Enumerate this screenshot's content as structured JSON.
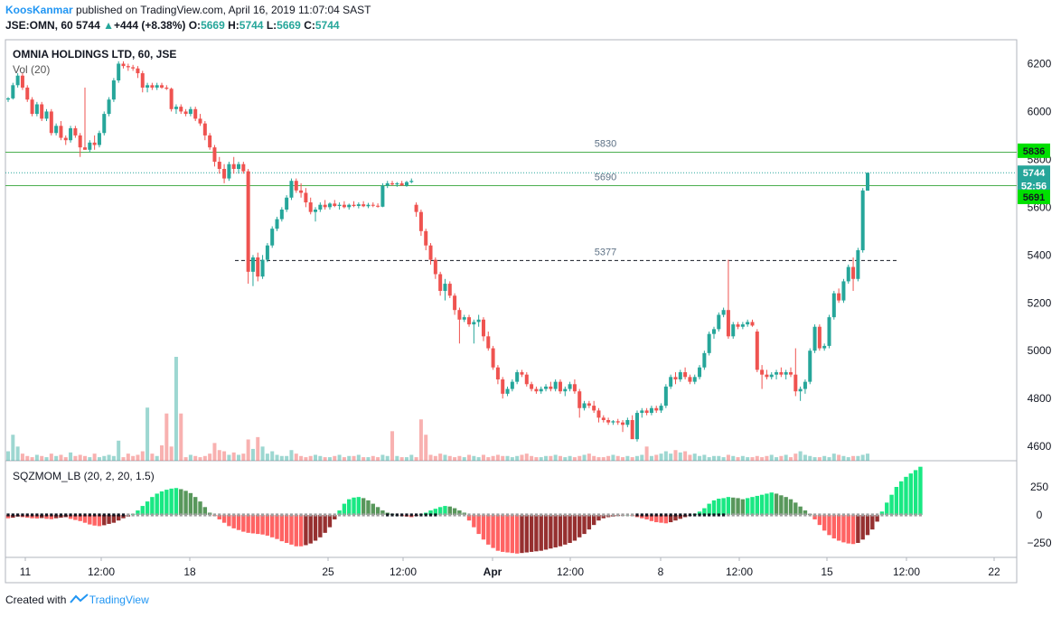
{
  "header": {
    "author": "KoosKanmar",
    "published": "published on TradingView.com, April 16, 2019 11:07:04 SAST",
    "symbol": "JSE:OMN, 60",
    "last": "5744",
    "arrow": "▲",
    "change": "+444 (+8.38%)",
    "o_label": "O:",
    "o_value": "5669",
    "h_label": "H:",
    "h_value": "5744",
    "l_label": "L:",
    "l_value": "5669",
    "c_label": "C:",
    "c_value": "5744"
  },
  "legend": {
    "symbol_title": "OMNIA HOLDINGS LTD, 60, JSE",
    "volume_label": "Vol (20)",
    "indicator_label": "SQZMOM_LB (20, 2, 20, 1.5)"
  },
  "footer": {
    "created_with": "Created with",
    "brand": "TradingView"
  },
  "colors": {
    "up": "#26a69a",
    "down": "#ef5350",
    "line_green": "#4caf50",
    "price_tag": "#26a69a",
    "green_tag": "#00e000",
    "sq_bright_green": "#00e676",
    "sq_dark_green": "#2e7d32",
    "sq_red": "#ff5252",
    "sq_maroon": "#8b1a1a"
  },
  "chart_data": {
    "type": "candlestick",
    "price_axis": {
      "range": [
        4540,
        6300
      ],
      "ticks": [
        "6200",
        "6000",
        "5800",
        "5600",
        "5400",
        "5200",
        "5000",
        "4800",
        "4600"
      ]
    },
    "time_axis_labels": [
      "11",
      "12:00",
      "18",
      "25",
      "12:00",
      "Apr",
      "12:00",
      "8",
      "12:00",
      "15",
      "12:00",
      "22"
    ],
    "horizontal_lines": [
      {
        "label": "5830",
        "value": 5830,
        "style": "solid"
      },
      {
        "label": "5690",
        "value": 5690,
        "style": "solid"
      },
      {
        "label": "5377",
        "value": 5377,
        "style": "dashed"
      }
    ],
    "price_tags": [
      {
        "label": "5836",
        "value": 5836,
        "kind": "green"
      },
      {
        "label": "5744",
        "value": 5744,
        "kind": "price"
      },
      {
        "label": "52:56",
        "value": 5690,
        "kind": "timer"
      },
      {
        "label": "5691",
        "value": 5643,
        "kind": "green"
      }
    ],
    "candles": [
      [
        6050,
        6060,
        6040,
        6055
      ],
      [
        6055,
        6120,
        6050,
        6110
      ],
      [
        6110,
        6160,
        6100,
        6150
      ],
      [
        6150,
        6160,
        6090,
        6100
      ],
      [
        6100,
        6110,
        6040,
        6050
      ],
      [
        6050,
        6060,
        5980,
        5990
      ],
      [
        5990,
        6040,
        5980,
        6030
      ],
      [
        6030,
        6040,
        5960,
        5970
      ],
      [
        5970,
        6010,
        5960,
        6000
      ],
      [
        6000,
        6010,
        5900,
        5910
      ],
      [
        5910,
        5950,
        5900,
        5940
      ],
      [
        5940,
        5960,
        5880,
        5890
      ],
      [
        5890,
        5900,
        5860,
        5880
      ],
      [
        5880,
        5940,
        5870,
        5930
      ],
      [
        5930,
        5940,
        5890,
        5900
      ],
      [
        5900,
        5910,
        5810,
        5850
      ],
      [
        5850,
        6100,
        5840,
        5840
      ],
      [
        5840,
        5880,
        5830,
        5870
      ],
      [
        5870,
        5900,
        5840,
        5860
      ],
      [
        5860,
        5920,
        5850,
        5910
      ],
      [
        5910,
        6000,
        5900,
        5990
      ],
      [
        5990,
        6060,
        5980,
        6050
      ],
      [
        6050,
        6140,
        6040,
        6130
      ],
      [
        6130,
        6210,
        6120,
        6200
      ],
      [
        6200,
        6210,
        6180,
        6190
      ],
      [
        6190,
        6200,
        6170,
        6185
      ],
      [
        6185,
        6195,
        6170,
        6180
      ],
      [
        6180,
        6190,
        6140,
        6160
      ],
      [
        6160,
        6170,
        6080,
        6100
      ],
      [
        6100,
        6120,
        6080,
        6110
      ],
      [
        6110,
        6120,
        6090,
        6100
      ],
      [
        6100,
        6120,
        6090,
        6110
      ],
      [
        6110,
        6120,
        6095,
        6100
      ],
      [
        6100,
        6110,
        6090,
        6095
      ],
      [
        6095,
        6100,
        6000,
        6010
      ],
      [
        6010,
        6030,
        5990,
        6020
      ],
      [
        6020,
        6030,
        5990,
        6000
      ],
      [
        6000,
        6010,
        5980,
        5990
      ],
      [
        5990,
        6020,
        5980,
        6010
      ],
      [
        6010,
        6020,
        5960,
        5970
      ],
      [
        5970,
        5990,
        5940,
        5950
      ],
      [
        5950,
        5960,
        5880,
        5900
      ],
      [
        5900,
        5910,
        5840,
        5850
      ],
      [
        5850,
        5860,
        5770,
        5790
      ],
      [
        5790,
        5810,
        5740,
        5760
      ],
      [
        5760,
        5780,
        5700,
        5720
      ],
      [
        5720,
        5790,
        5710,
        5780
      ],
      [
        5780,
        5810,
        5740,
        5760
      ],
      [
        5760,
        5790,
        5740,
        5780
      ],
      [
        5780,
        5790,
        5740,
        5750
      ],
      [
        5750,
        5760,
        5280,
        5330
      ],
      [
        5330,
        5400,
        5270,
        5390
      ],
      [
        5390,
        5410,
        5290,
        5310
      ],
      [
        5310,
        5400,
        5300,
        5380
      ],
      [
        5380,
        5450,
        5370,
        5440
      ],
      [
        5440,
        5520,
        5430,
        5510
      ],
      [
        5510,
        5560,
        5500,
        5550
      ],
      [
        5550,
        5600,
        5540,
        5590
      ],
      [
        5590,
        5650,
        5580,
        5640
      ],
      [
        5640,
        5720,
        5630,
        5710
      ],
      [
        5710,
        5720,
        5660,
        5670
      ],
      [
        5670,
        5700,
        5640,
        5660
      ],
      [
        5660,
        5680,
        5600,
        5620
      ],
      [
        5620,
        5640,
        5570,
        5580
      ],
      [
        5580,
        5600,
        5540,
        5590
      ],
      [
        5590,
        5620,
        5580,
        5610
      ],
      [
        5610,
        5630,
        5590,
        5600
      ],
      [
        5600,
        5620,
        5590,
        5615
      ],
      [
        5615,
        5630,
        5600,
        5605
      ],
      [
        5605,
        5620,
        5590,
        5610
      ],
      [
        5610,
        5625,
        5595,
        5600
      ],
      [
        5600,
        5615,
        5590,
        5610
      ],
      [
        5610,
        5625,
        5600,
        5605
      ],
      [
        5605,
        5620,
        5595,
        5612
      ],
      [
        5612,
        5625,
        5600,
        5604
      ],
      [
        5604,
        5618,
        5596,
        5610
      ],
      [
        5610,
        5620,
        5600,
        5606
      ],
      [
        5606,
        5616,
        5598,
        5602
      ],
      [
        5602,
        5700,
        5600,
        5690
      ],
      [
        5690,
        5710,
        5680,
        5700
      ],
      [
        5700,
        5710,
        5690,
        5695
      ],
      [
        5695,
        5705,
        5685,
        5700
      ],
      [
        5700,
        5710,
        5690,
        5690
      ],
      [
        5690,
        5710,
        5685,
        5705
      ],
      [
        5705,
        5720,
        5700,
        5710
      ],
      [
        5610,
        5620,
        5560,
        5580
      ],
      [
        5580,
        5590,
        5480,
        5500
      ],
      [
        5500,
        5510,
        5420,
        5440
      ],
      [
        5440,
        5450,
        5360,
        5380
      ],
      [
        5380,
        5390,
        5300,
        5320
      ],
      [
        5320,
        5330,
        5230,
        5250
      ],
      [
        5250,
        5300,
        5210,
        5280
      ],
      [
        5280,
        5290,
        5220,
        5230
      ],
      [
        5230,
        5240,
        5150,
        5170
      ],
      [
        5170,
        5180,
        5030,
        5130
      ],
      [
        5130,
        5150,
        5120,
        5140
      ],
      [
        5140,
        5150,
        5100,
        5110
      ],
      [
        5110,
        5130,
        5030,
        5120
      ],
      [
        5120,
        5150,
        5100,
        5130
      ],
      [
        5130,
        5140,
        5040,
        5060
      ],
      [
        5060,
        5080,
        5000,
        5010
      ],
      [
        5010,
        5020,
        4920,
        4930
      ],
      [
        4930,
        4940,
        4860,
        4880
      ],
      [
        4880,
        4890,
        4800,
        4820
      ],
      [
        4820,
        4850,
        4810,
        4840
      ],
      [
        4840,
        4880,
        4830,
        4870
      ],
      [
        4870,
        4920,
        4860,
        4910
      ],
      [
        4910,
        4920,
        4890,
        4900
      ],
      [
        4900,
        4910,
        4850,
        4860
      ],
      [
        4860,
        4870,
        4830,
        4840
      ],
      [
        4840,
        4850,
        4820,
        4830
      ],
      [
        4830,
        4850,
        4820,
        4840
      ],
      [
        4840,
        4860,
        4830,
        4850
      ],
      [
        4850,
        4870,
        4830,
        4840
      ],
      [
        4840,
        4880,
        4830,
        4870
      ],
      [
        4870,
        4880,
        4820,
        4830
      ],
      [
        4830,
        4850,
        4810,
        4840
      ],
      [
        4840,
        4870,
        4830,
        4860
      ],
      [
        4860,
        4880,
        4820,
        4830
      ],
      [
        4830,
        4840,
        4720,
        4760
      ],
      [
        4760,
        4790,
        4750,
        4780
      ],
      [
        4780,
        4790,
        4760,
        4770
      ],
      [
        4770,
        4790,
        4740,
        4750
      ],
      [
        4750,
        4760,
        4700,
        4720
      ],
      [
        4720,
        4730,
        4700,
        4710
      ],
      [
        4710,
        4720,
        4690,
        4700
      ],
      [
        4700,
        4710,
        4690,
        4705
      ],
      [
        4705,
        4715,
        4690,
        4700
      ],
      [
        4700,
        4710,
        4660,
        4690
      ],
      [
        4690,
        4720,
        4680,
        4710
      ],
      [
        4710,
        4730,
        4640,
        4630
      ],
      [
        4630,
        4750,
        4620,
        4740
      ],
      [
        4740,
        4760,
        4720,
        4750
      ],
      [
        4750,
        4760,
        4730,
        4740
      ],
      [
        4740,
        4770,
        4730,
        4760
      ],
      [
        4760,
        4770,
        4740,
        4750
      ],
      [
        4750,
        4780,
        4740,
        4770
      ],
      [
        4770,
        4860,
        4760,
        4850
      ],
      [
        4850,
        4900,
        4840,
        4890
      ],
      [
        4890,
        4910,
        4860,
        4880
      ],
      [
        4880,
        4920,
        4870,
        4910
      ],
      [
        4910,
        4930,
        4880,
        4890
      ],
      [
        4890,
        4900,
        4860,
        4870
      ],
      [
        4870,
        4900,
        4860,
        4890
      ],
      [
        4890,
        4940,
        4880,
        4930
      ],
      [
        4930,
        5000,
        4920,
        4990
      ],
      [
        4990,
        5080,
        4980,
        5070
      ],
      [
        5070,
        5100,
        5050,
        5090
      ],
      [
        5090,
        5160,
        5080,
        5150
      ],
      [
        5150,
        5180,
        5140,
        5170
      ],
      [
        5170,
        5380,
        5050,
        5060
      ],
      [
        5060,
        5120,
        5050,
        5110
      ],
      [
        5110,
        5120,
        5090,
        5100
      ],
      [
        5100,
        5120,
        5090,
        5110
      ],
      [
        5110,
        5130,
        5100,
        5120
      ],
      [
        5120,
        5130,
        5100,
        5105
      ],
      [
        5080,
        5090,
        4910,
        4920
      ],
      [
        4920,
        4940,
        4840,
        4900
      ],
      [
        4900,
        4920,
        4880,
        4890
      ],
      [
        4890,
        4910,
        4880,
        4900
      ],
      [
        4900,
        4920,
        4880,
        4910
      ],
      [
        4910,
        4930,
        4890,
        4900
      ],
      [
        4900,
        4920,
        4880,
        4910
      ],
      [
        4910,
        4930,
        4890,
        4900
      ],
      [
        4900,
        5010,
        4810,
        4830
      ],
      [
        4830,
        4850,
        4790,
        4840
      ],
      [
        4840,
        4880,
        4820,
        4870
      ],
      [
        4870,
        5010,
        4860,
        5000
      ],
      [
        5000,
        5110,
        4990,
        5100
      ],
      [
        5100,
        5110,
        5000,
        5010
      ],
      [
        5010,
        5030,
        5000,
        5020
      ],
      [
        5020,
        5150,
        5010,
        5140
      ],
      [
        5140,
        5250,
        5130,
        5240
      ],
      [
        5240,
        5260,
        5200,
        5210
      ],
      [
        5210,
        5300,
        5200,
        5290
      ],
      [
        5290,
        5360,
        5280,
        5350
      ],
      [
        5350,
        5390,
        5250,
        5300
      ],
      [
        5300,
        5430,
        5290,
        5420
      ],
      [
        5420,
        5680,
        5410,
        5670
      ],
      [
        5669,
        5744,
        5669,
        5744
      ]
    ],
    "volume": [
      8,
      22,
      12,
      6,
      4,
      3,
      5,
      4,
      3,
      6,
      4,
      5,
      3,
      7,
      4,
      5,
      4,
      3,
      6,
      3,
      4,
      5,
      4,
      17,
      3,
      6,
      4,
      5,
      8,
      45,
      6,
      4,
      13,
      40,
      12,
      88,
      40,
      3,
      5,
      4,
      3,
      4,
      6,
      15,
      9,
      8,
      5,
      7,
      5,
      6,
      18,
      10,
      20,
      12,
      6,
      8,
      5,
      4,
      4,
      9,
      6,
      4,
      3,
      4,
      5,
      4,
      3,
      3,
      4,
      5,
      3,
      4,
      4,
      5,
      3,
      3,
      4,
      3,
      5,
      4,
      25,
      4,
      3,
      3,
      5,
      3,
      35,
      22,
      5,
      4,
      6,
      5,
      4,
      3,
      4,
      3,
      5,
      4,
      3,
      5,
      3,
      4,
      5,
      4,
      4,
      3,
      4,
      5,
      6,
      4,
      3,
      3,
      4,
      4,
      5,
      4,
      3,
      4,
      3,
      4,
      5,
      6,
      4,
      3,
      3,
      4,
      5,
      4,
      3,
      4,
      3,
      4,
      5,
      12,
      4,
      5,
      6,
      8,
      6,
      9,
      7,
      8,
      5,
      6,
      4,
      5,
      3,
      4,
      4,
      3,
      5,
      4,
      3,
      4,
      3,
      3,
      4,
      3,
      4,
      5,
      3,
      4,
      5,
      3,
      6,
      8,
      5,
      4,
      3,
      3,
      4,
      3,
      6,
      5,
      4,
      3,
      4,
      4,
      5,
      6
    ],
    "squeeze_momentum": [
      -30,
      -25,
      -15,
      -20,
      -25,
      -30,
      -32,
      -28,
      -35,
      -38,
      -30,
      -25,
      -20,
      -35,
      -45,
      -55,
      -70,
      -85,
      -95,
      -100,
      -92,
      -80,
      -70,
      -50,
      -30,
      -15,
      10,
      40,
      80,
      120,
      160,
      190,
      210,
      225,
      235,
      240,
      230,
      215,
      195,
      160,
      120,
      70,
      20,
      -10,
      -40,
      -70,
      -100,
      -120,
      -135,
      -150,
      -160,
      -165,
      -170,
      -175,
      -185,
      -200,
      -215,
      -235,
      -250,
      -265,
      -280,
      -280,
      -270,
      -255,
      -230,
      -200,
      -160,
      -110,
      -40,
      40,
      100,
      140,
      155,
      160,
      150,
      130,
      100,
      70,
      40,
      20,
      10,
      0,
      -10,
      -15,
      -20,
      -10,
      5,
      20,
      40,
      55,
      70,
      80,
      75,
      60,
      40,
      20,
      -50,
      -110,
      -170,
      -220,
      -265,
      -295,
      -320,
      -330,
      -335,
      -340,
      -345,
      -340,
      -335,
      -330,
      -325,
      -320,
      -310,
      -300,
      -290,
      -280,
      -265,
      -250,
      -230,
      -200,
      -170,
      -130,
      -90,
      -50,
      -30,
      -20,
      -15,
      -10,
      -5,
      0,
      -10,
      -20,
      -30,
      -40,
      -55,
      -65,
      -70,
      -75,
      -65,
      -50,
      -35,
      -20,
      -5,
      10,
      30,
      60,
      100,
      130,
      145,
      150,
      160,
      155,
      150,
      140,
      150,
      160,
      170,
      180,
      190,
      200,
      190,
      175,
      160,
      140,
      110,
      75,
      40,
      10,
      -40,
      -90,
      -140,
      -180,
      -210,
      -230,
      -245,
      -255,
      -260,
      -250,
      -220,
      -180,
      -130,
      -60,
      30,
      110,
      180,
      250,
      300,
      340,
      370,
      400,
      430
    ]
  }
}
